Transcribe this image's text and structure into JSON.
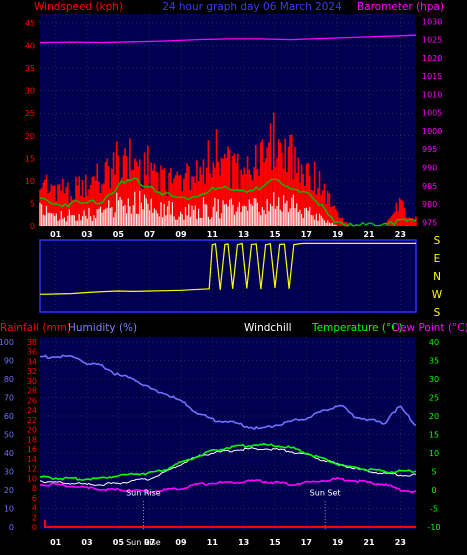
{
  "title": "24 hour graph day  06 March 2024",
  "chart_data": [
    {
      "type": "line",
      "title": "24 hour graph day  06 March 2024",
      "left_axis": {
        "label": "Windspeed (kph)",
        "ticks": [
          0,
          5,
          10,
          15,
          20,
          25,
          30,
          35,
          40,
          45
        ],
        "ylim": [
          0,
          47
        ]
      },
      "right_axis": {
        "label": "Barometer (hpa)",
        "ticks": [
          975,
          980,
          985,
          990,
          995,
          1000,
          1005,
          1010,
          1015,
          1020,
          1025,
          1030
        ],
        "ylim": [
          974,
          1032
        ]
      },
      "x_ticks": [
        "01",
        "03",
        "05",
        "07",
        "09",
        "11",
        "13",
        "15",
        "17",
        "19",
        "21",
        "23"
      ],
      "xlim": [
        0,
        24
      ],
      "colors": {
        "gust": "#ff0000",
        "average": "#00c000",
        "speed": "#ffffff",
        "barometer": "#ff00ff",
        "bg": "#000050",
        "grid": "#505050"
      },
      "series": [
        {
          "name": "Windspeed gust",
          "x": [
            0,
            1,
            2,
            3,
            3.5,
            4,
            4.5,
            5,
            5.5,
            6,
            6.5,
            7,
            7.5,
            8,
            8.5,
            9,
            9.5,
            10,
            10.5,
            11,
            11.5,
            12,
            12.5,
            13,
            13.5,
            14,
            14.5,
            15,
            15.5,
            16,
            16.5,
            17,
            17.5,
            18,
            18.5,
            19,
            19.5,
            20,
            20.5,
            21,
            21.5,
            22,
            22.5,
            23,
            23.5,
            24
          ],
          "values": [
            12,
            10,
            9,
            10,
            12,
            13,
            14,
            17,
            18,
            16,
            14,
            16,
            14,
            12,
            11,
            12,
            13,
            15,
            16,
            18,
            19,
            15,
            14,
            16,
            17,
            15,
            18,
            22,
            21,
            19,
            17,
            13,
            13,
            10,
            6,
            3,
            1,
            0,
            0,
            0,
            0,
            0,
            3,
            6,
            2,
            2
          ]
        },
        {
          "name": "Windspeed average",
          "x": [
            0,
            1,
            2,
            3,
            4,
            5,
            6,
            7,
            8,
            9,
            10,
            11,
            12,
            13,
            14,
            15,
            16,
            17,
            18,
            19,
            20,
            21,
            22,
            23,
            24
          ],
          "values": [
            6,
            5,
            5,
            5,
            6,
            9,
            10,
            9,
            7,
            6,
            7,
            8,
            8,
            8,
            8,
            10,
            9,
            7,
            4,
            1,
            0,
            0,
            1,
            1,
            1
          ]
        },
        {
          "name": "Windspeed",
          "x": [
            0,
            1,
            2,
            3,
            4,
            5,
            6,
            7,
            8,
            9,
            10,
            11,
            12,
            13,
            14,
            15,
            16,
            17,
            18,
            19,
            20,
            21,
            22,
            23,
            24
          ],
          "values": [
            4,
            3,
            3,
            3,
            4,
            6,
            7,
            6,
            5,
            4,
            5,
            5,
            5,
            5,
            5,
            6,
            6,
            4,
            2,
            0,
            0,
            0,
            0,
            0,
            0
          ]
        },
        {
          "name": "Barometer",
          "axis": "right",
          "x": [
            0,
            2,
            4,
            6,
            8,
            10,
            12,
            14,
            16,
            18,
            20,
            22,
            24
          ],
          "values": [
            1024.2,
            1024.3,
            1024.2,
            1024.4,
            1024.6,
            1025.0,
            1025.2,
            1025.2,
            1025.0,
            1025.3,
            1025.6,
            1025.9,
            1026.2
          ]
        }
      ]
    },
    {
      "type": "scatter",
      "x_ticks": [
        "01",
        "03",
        "05",
        "07",
        "09",
        "11",
        "13",
        "15",
        "17",
        "19",
        "21",
        "23"
      ],
      "compass_labels": [
        "S",
        "E",
        "N",
        "W",
        "S"
      ],
      "ylim_degrees": [
        0,
        360
      ],
      "colors": {
        "trace": "#ffff00",
        "bg": "#000050",
        "border": "#3030ff"
      },
      "series": [
        {
          "name": "Wind direction",
          "x": [
            0,
            1,
            2,
            3,
            4,
            5,
            6,
            7,
            8,
            9,
            10.8,
            11,
            11.2,
            11.5,
            11.8,
            12,
            12.3,
            12.6,
            12.9,
            13.2,
            13.5,
            13.8,
            14.1,
            14.4,
            14.7,
            15,
            15.3,
            15.6,
            15.9,
            16.2,
            16.5,
            16.8,
            17.5,
            18,
            19,
            20,
            21,
            22,
            23,
            24
          ],
          "values": [
            80,
            82,
            84,
            90,
            95,
            98,
            96,
            98,
            100,
            102,
            110,
            350,
            355,
            105,
            352,
            355,
            110,
            350,
            358,
            112,
            352,
            355,
            108,
            350,
            356,
            115,
            353,
            354,
            110,
            351,
            355,
            358,
            358,
            358,
            358,
            358,
            358,
            358,
            358,
            358
          ]
        }
      ]
    },
    {
      "type": "line",
      "left_axis_humidity": {
        "label": "Humidity (%)",
        "ticks": [
          0,
          10,
          20,
          30,
          40,
          50,
          60,
          70,
          80,
          90,
          100
        ]
      },
      "left_axis_rain": {
        "label": "Rainfall (mm)",
        "ticks": [
          0,
          2,
          4,
          6,
          8,
          10,
          12,
          14,
          16,
          18,
          20,
          22,
          24,
          26,
          28,
          30,
          32,
          34,
          36,
          38
        ]
      },
      "right_axis": {
        "label": "Temperature (°C)",
        "ticks": [
          -10,
          -5,
          0,
          5,
          10,
          15,
          20,
          25,
          30,
          35,
          40
        ]
      },
      "windchill_label": "Windchill",
      "dewpoint_label": "Dew Point (°C)",
      "x_ticks": [
        "01",
        "03",
        "05",
        "07",
        "09",
        "11",
        "13",
        "15",
        "17",
        "19",
        "21",
        "23"
      ],
      "annotations": [
        "Sun Rise",
        "Sun Set",
        "Sun Rise"
      ],
      "colors": {
        "rain": "#ff0000",
        "humidity": "#7070ff",
        "windchill": "#ffffff",
        "temperature": "#00ff00",
        "dewpoint": "#ff00ff",
        "sun": "#ffffff",
        "bg": "#000050"
      },
      "series": [
        {
          "name": "Humidity (%)",
          "x": [
            0,
            2,
            2.5,
            3,
            4,
            5,
            6,
            7,
            8,
            9,
            10,
            11,
            12,
            13,
            14,
            15,
            16,
            17,
            18,
            19,
            19.5,
            20,
            21,
            22,
            22.5,
            23,
            23.5,
            24
          ],
          "values": [
            92,
            92,
            91,
            88,
            87,
            82,
            80,
            75,
            72,
            68,
            62,
            58,
            57,
            55,
            53,
            55,
            57,
            59,
            62,
            66,
            64,
            60,
            58,
            56,
            62,
            65,
            60,
            55
          ]
        },
        {
          "name": "Windchill",
          "axis": "right",
          "x": [
            0,
            1,
            2,
            3,
            4,
            5,
            6,
            7,
            8,
            9,
            10,
            11,
            12,
            13,
            14,
            15,
            16,
            17,
            18,
            19,
            20,
            21,
            22,
            23,
            24
          ],
          "values": [
            2.5,
            2.0,
            1.8,
            1.5,
            1.5,
            1.8,
            2.5,
            3.0,
            4.8,
            7.0,
            9.0,
            10.0,
            10.5,
            11.0,
            11.2,
            11.0,
            10.5,
            9.5,
            8.2,
            7.0,
            6.0,
            5.0,
            4.5,
            4.0,
            4.2
          ]
        },
        {
          "name": "Temperature (°C)",
          "axis": "right",
          "x": [
            0,
            1,
            2,
            3,
            4,
            5,
            6,
            7,
            8,
            9,
            10,
            11,
            12,
            13,
            14,
            15,
            16,
            17,
            18,
            19,
            20,
            21,
            22,
            23,
            24
          ],
          "values": [
            3.5,
            3.2,
            3.0,
            3.0,
            3.2,
            4.0,
            4.3,
            4.6,
            5.5,
            7.5,
            9.0,
            10.5,
            11.5,
            12.0,
            12.2,
            12.0,
            11.5,
            10.0,
            8.5,
            7.0,
            6.0,
            5.5,
            5.0,
            5.0,
            5.2
          ]
        },
        {
          "name": "Dew Point (°C)",
          "axis": "right",
          "x": [
            0,
            1,
            2,
            3,
            4,
            5,
            6,
            7,
            8,
            9,
            10,
            11,
            12,
            13,
            14,
            15,
            16,
            17,
            18,
            19,
            20,
            21,
            22,
            23,
            24
          ],
          "values": [
            1.5,
            1.5,
            1.0,
            0.5,
            0.2,
            0.0,
            -0.2,
            -0.5,
            0.0,
            0.5,
            1.5,
            1.8,
            2.0,
            2.2,
            2.5,
            2.0,
            1.5,
            2.0,
            2.5,
            3.0,
            2.5,
            2.0,
            1.5,
            0.0,
            -0.5
          ]
        },
        {
          "name": "Rainfall (mm)",
          "x": [
            0,
            24
          ],
          "values": [
            0,
            0
          ]
        }
      ],
      "sun_events": [
        {
          "label": "Sun Rise",
          "x": 6.6
        },
        {
          "label": "Sun Set",
          "x": 18.2
        }
      ],
      "sunrise_bottom_label": "Sun Rise"
    }
  ]
}
